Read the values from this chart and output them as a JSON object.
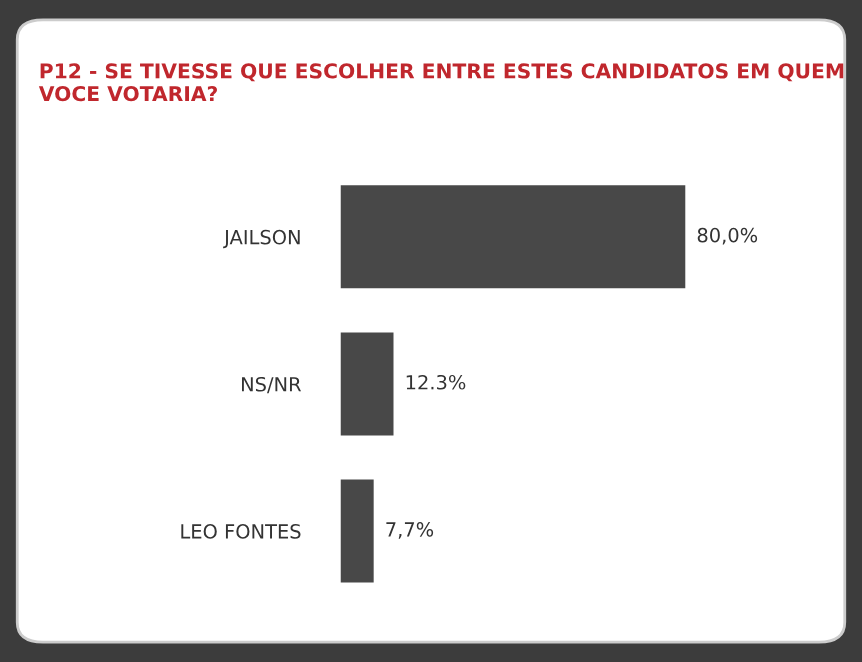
{
  "chart_data": {
    "type": "bar",
    "orientation": "horizontal",
    "title": "P12 - SE TIVESSE QUE ESCOLHER ENTRE ESTES CANDIDATOS EM QUEM VOCE VOTARIA?",
    "categories": [
      "JAILSON",
      "NS/NR",
      "LEO FONTES"
    ],
    "values": [
      80.0,
      12.3,
      7.7
    ],
    "value_labels": [
      "80,0%",
      "12.3%",
      "7,7%"
    ],
    "color": "#484848"
  }
}
